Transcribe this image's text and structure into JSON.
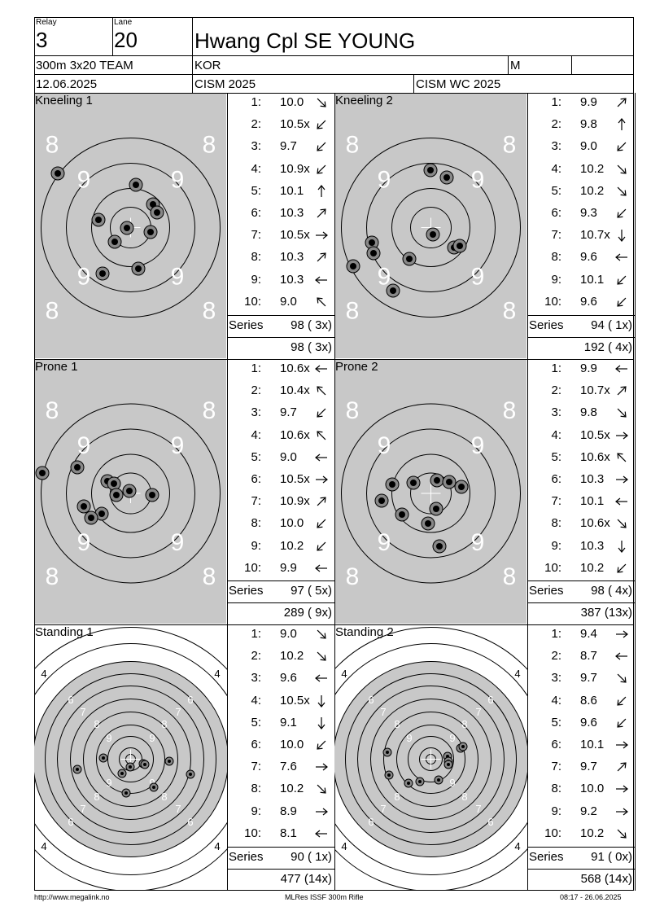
{
  "header": {
    "relay_label": "Relay",
    "relay_value": "3",
    "lane_label": "Lane",
    "lane_value": "20",
    "athlete_name": "Hwang Cpl SE YOUNG",
    "event": "300m 3x20 TEAM",
    "nation": "KOR",
    "gender": "M",
    "date": "12.06.2025",
    "competition": "CISM 2025",
    "match": "CISM WC 2025"
  },
  "sections": [
    {
      "title": "Kneeling 1",
      "target": "prone",
      "shots": [
        {
          "n": "1:",
          "v": "10.0",
          "dir": "down-right"
        },
        {
          "n": "2:",
          "v": "10.5x",
          "dir": "down-left"
        },
        {
          "n": "3:",
          "v": "9.7",
          "dir": "down-left"
        },
        {
          "n": "4:",
          "v": "10.9x",
          "dir": "down-left"
        },
        {
          "n": "5:",
          "v": "10.1",
          "dir": "up"
        },
        {
          "n": "6:",
          "v": "10.3",
          "dir": "up-right"
        },
        {
          "n": "7:",
          "v": "10.5x",
          "dir": "right"
        },
        {
          "n": "8:",
          "v": "10.3",
          "dir": "up-right"
        },
        {
          "n": "9:",
          "v": "10.3",
          "dir": "left"
        },
        {
          "n": "10:",
          "v": "9.0",
          "dir": "up-left"
        }
      ],
      "series_label": "Series",
      "series_value": "98 ( 3x)",
      "total_value": "98 ( 3x)"
    },
    {
      "title": "Kneeling 2",
      "target": "prone",
      "shots": [
        {
          "n": "1:",
          "v": "9.9",
          "dir": "up-right"
        },
        {
          "n": "2:",
          "v": "9.8",
          "dir": "up"
        },
        {
          "n": "3:",
          "v": "9.0",
          "dir": "down-left"
        },
        {
          "n": "4:",
          "v": "10.2",
          "dir": "down-right"
        },
        {
          "n": "5:",
          "v": "10.2",
          "dir": "down-right"
        },
        {
          "n": "6:",
          "v": "9.3",
          "dir": "down-left"
        },
        {
          "n": "7:",
          "v": "10.7x",
          "dir": "down"
        },
        {
          "n": "8:",
          "v": "9.6",
          "dir": "left"
        },
        {
          "n": "9:",
          "v": "10.1",
          "dir": "down-left"
        },
        {
          "n": "10:",
          "v": "9.6",
          "dir": "down-left"
        }
      ],
      "series_label": "Series",
      "series_value": "94 ( 1x)",
      "total_value": "192 ( 4x)"
    },
    {
      "title": "Prone 1",
      "target": "prone",
      "shots": [
        {
          "n": "1:",
          "v": "10.6x",
          "dir": "left"
        },
        {
          "n": "2:",
          "v": "10.4x",
          "dir": "up-left"
        },
        {
          "n": "3:",
          "v": "9.7",
          "dir": "down-left"
        },
        {
          "n": "4:",
          "v": "10.6x",
          "dir": "up-left"
        },
        {
          "n": "5:",
          "v": "9.0",
          "dir": "left"
        },
        {
          "n": "6:",
          "v": "10.5x",
          "dir": "right"
        },
        {
          "n": "7:",
          "v": "10.9x",
          "dir": "up-right"
        },
        {
          "n": "8:",
          "v": "10.0",
          "dir": "down-left"
        },
        {
          "n": "9:",
          "v": "10.2",
          "dir": "down-left"
        },
        {
          "n": "10:",
          "v": "9.9",
          "dir": "left"
        }
      ],
      "series_label": "Series",
      "series_value": "97 ( 5x)",
      "total_value": "289 ( 9x)"
    },
    {
      "title": "Prone 2",
      "target": "prone",
      "shots": [
        {
          "n": "1:",
          "v": "9.9",
          "dir": "left"
        },
        {
          "n": "2:",
          "v": "10.7x",
          "dir": "up-right"
        },
        {
          "n": "3:",
          "v": "9.8",
          "dir": "down-right"
        },
        {
          "n": "4:",
          "v": "10.5x",
          "dir": "right"
        },
        {
          "n": "5:",
          "v": "10.6x",
          "dir": "up-left"
        },
        {
          "n": "6:",
          "v": "10.3",
          "dir": "right"
        },
        {
          "n": "7:",
          "v": "10.1",
          "dir": "left"
        },
        {
          "n": "8:",
          "v": "10.6x",
          "dir": "down-right"
        },
        {
          "n": "9:",
          "v": "10.3",
          "dir": "down"
        },
        {
          "n": "10:",
          "v": "10.2",
          "dir": "down-left"
        }
      ],
      "series_label": "Series",
      "series_value": "98 ( 4x)",
      "total_value": "387 (13x)"
    },
    {
      "title": "Standing 1",
      "target": "standing",
      "shots": [
        {
          "n": "1:",
          "v": "9.0",
          "dir": "down-right"
        },
        {
          "n": "2:",
          "v": "10.2",
          "dir": "down-right"
        },
        {
          "n": "3:",
          "v": "9.6",
          "dir": "left"
        },
        {
          "n": "4:",
          "v": "10.5x",
          "dir": "down"
        },
        {
          "n": "5:",
          "v": "9.1",
          "dir": "down"
        },
        {
          "n": "6:",
          "v": "10.0",
          "dir": "down-left"
        },
        {
          "n": "7:",
          "v": "7.6",
          "dir": "right"
        },
        {
          "n": "8:",
          "v": "10.2",
          "dir": "down-right"
        },
        {
          "n": "9:",
          "v": "8.9",
          "dir": "right"
        },
        {
          "n": "10:",
          "v": "8.1",
          "dir": "left"
        }
      ],
      "series_label": "Series",
      "series_value": "90 ( 1x)",
      "total_value": "477 (14x)"
    },
    {
      "title": "Standing 2",
      "target": "standing",
      "shots": [
        {
          "n": "1:",
          "v": "9.4",
          "dir": "right"
        },
        {
          "n": "2:",
          "v": "8.7",
          "dir": "left"
        },
        {
          "n": "3:",
          "v": "9.7",
          "dir": "down-right"
        },
        {
          "n": "4:",
          "v": "8.6",
          "dir": "down-left"
        },
        {
          "n": "5:",
          "v": "9.6",
          "dir": "down-left"
        },
        {
          "n": "6:",
          "v": "10.1",
          "dir": "right"
        },
        {
          "n": "7:",
          "v": "9.7",
          "dir": "up-right"
        },
        {
          "n": "8:",
          "v": "10.0",
          "dir": "right"
        },
        {
          "n": "9:",
          "v": "9.2",
          "dir": "right"
        },
        {
          "n": "10:",
          "v": "10.2",
          "dir": "down-right"
        }
      ],
      "series_label": "Series",
      "series_value": "91 ( 0x)",
      "total_value": "568 (14x)"
    }
  ],
  "footer": {
    "url": "http://www.megalink.no",
    "program": "MLRes ISSF 300m Rifle",
    "timestamp": "08:17 - 26.06.2025"
  },
  "colors": {
    "target_gray": "#c8c8c8",
    "shot_fill": "#000000",
    "shot_ring": "#888888"
  }
}
